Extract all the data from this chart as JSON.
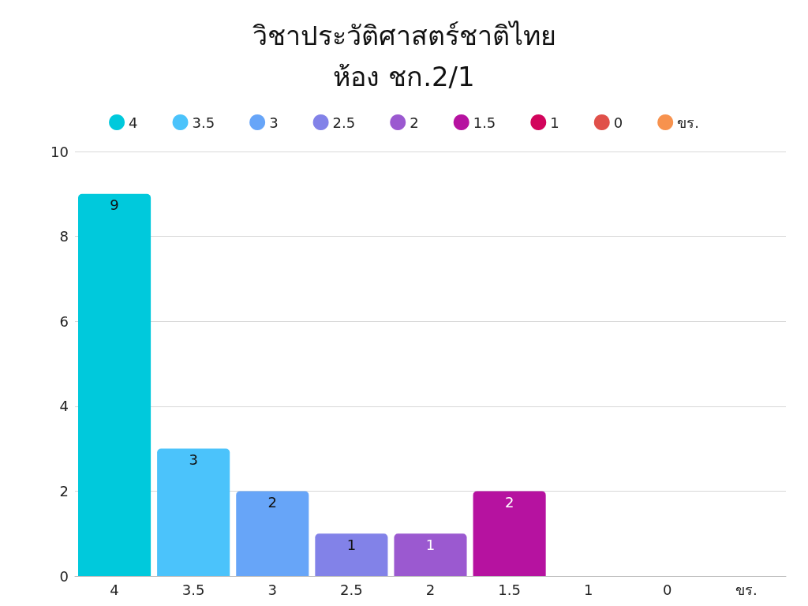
{
  "chart_data": {
    "type": "bar",
    "title": "วิชาประวัติศาสตร์ชาติไทย\nห้อง ชก.2/1",
    "categories": [
      "4",
      "3.5",
      "3",
      "2.5",
      "2",
      "1.5",
      "1",
      "0",
      "ขร."
    ],
    "stacked": true,
    "series": [
      {
        "name": "4",
        "color": "#00c9dc",
        "values": [
          9,
          null,
          null,
          null,
          null,
          null,
          null,
          null,
          null
        ],
        "value_labels": [
          "9",
          null,
          null,
          null,
          null,
          null,
          null,
          null,
          null
        ]
      },
      {
        "name": "3.5",
        "color": "#4bc3fb",
        "values": [
          null,
          3,
          null,
          null,
          null,
          null,
          null,
          null,
          null
        ],
        "value_labels": [
          null,
          "3",
          null,
          null,
          null,
          null,
          null,
          null,
          null
        ]
      },
      {
        "name": "3",
        "color": "#67a5f8",
        "values": [
          null,
          null,
          2,
          null,
          null,
          null,
          null,
          null,
          null
        ],
        "value_labels": [
          null,
          null,
          "2",
          null,
          null,
          null,
          null,
          null,
          null
        ]
      },
      {
        "name": "2.5",
        "color": "#8282e8",
        "values": [
          null,
          null,
          null,
          1,
          null,
          null,
          null,
          null,
          null
        ],
        "value_labels": [
          null,
          null,
          null,
          "1",
          null,
          null,
          null,
          null,
          null
        ]
      },
      {
        "name": "2",
        "color": "#9b59d0",
        "values": [
          null,
          null,
          null,
          null,
          1,
          null,
          null,
          null,
          null
        ],
        "value_labels": [
          null,
          null,
          null,
          null,
          "1",
          null,
          null,
          null,
          null
        ]
      },
      {
        "name": "1.5",
        "color": "#b612a0",
        "values": [
          null,
          null,
          null,
          null,
          null,
          2,
          null,
          null,
          null
        ],
        "value_labels": [
          null,
          null,
          null,
          null,
          null,
          "2",
          null,
          null,
          null
        ]
      },
      {
        "name": "1",
        "color": "#d2045c",
        "values": [
          null,
          null,
          null,
          null,
          null,
          null,
          0,
          null,
          null
        ],
        "value_labels": [
          null,
          null,
          null,
          null,
          null,
          null,
          null,
          null,
          null
        ]
      },
      {
        "name": "0",
        "color": "#e0504a",
        "values": [
          null,
          null,
          null,
          null,
          null,
          null,
          null,
          0,
          null
        ],
        "value_labels": [
          null,
          null,
          null,
          null,
          null,
          null,
          null,
          null,
          null
        ]
      },
      {
        "name": "ขร.",
        "color": "#f7924e",
        "values": [
          null,
          null,
          null,
          null,
          null,
          null,
          null,
          null,
          0
        ],
        "value_labels": [
          null,
          null,
          null,
          null,
          null,
          null,
          null,
          null,
          null
        ]
      }
    ],
    "ylim": [
      0,
      10
    ],
    "yticks": [
      0,
      2,
      4,
      6,
      8,
      10
    ],
    "grid": "y",
    "legend": "top"
  }
}
